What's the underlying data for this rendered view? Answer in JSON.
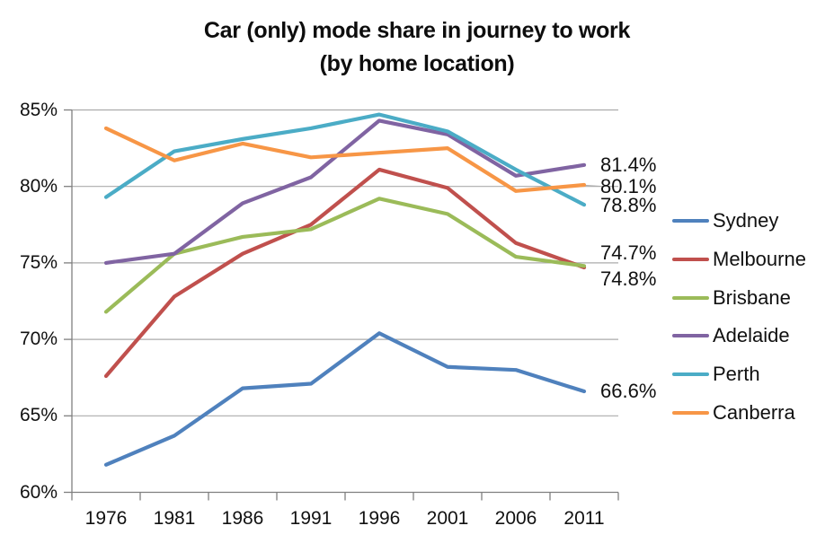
{
  "chart_data": {
    "type": "line",
    "title_line1": "Car (only) mode share in journey to work",
    "title_line2": "(by home location)",
    "xlabel": "",
    "ylabel": "",
    "ylim": [
      60,
      85
    ],
    "y_tick_step": 5,
    "y_tick_labels": [
      "85%",
      "80%",
      "75%",
      "70%",
      "65%",
      "60%"
    ],
    "y_tick_values": [
      85,
      80,
      75,
      70,
      65,
      60
    ],
    "categories": [
      "1976",
      "1981",
      "1986",
      "1991",
      "1996",
      "2001",
      "2006",
      "2011"
    ],
    "grid": "horizontal",
    "legend_position": "right",
    "series": [
      {
        "name": "Sydney",
        "color": "#4F81BD",
        "values": [
          61.8,
          63.7,
          66.8,
          67.1,
          70.4,
          68.2,
          68.0,
          66.6
        ]
      },
      {
        "name": "Melbourne",
        "color": "#C0504D",
        "values": [
          67.6,
          72.8,
          75.6,
          77.5,
          81.1,
          79.9,
          76.3,
          74.7
        ]
      },
      {
        "name": "Brisbane",
        "color": "#9BBB59",
        "values": [
          71.8,
          75.6,
          76.7,
          77.2,
          79.2,
          78.2,
          75.4,
          74.8
        ]
      },
      {
        "name": "Adelaide",
        "color": "#8064A2",
        "values": [
          75.0,
          75.6,
          78.9,
          80.6,
          84.3,
          83.4,
          80.7,
          81.4
        ]
      },
      {
        "name": "Perth",
        "color": "#4BACC6",
        "values": [
          79.3,
          82.3,
          83.1,
          83.8,
          84.7,
          83.6,
          81.1,
          78.8
        ]
      },
      {
        "name": "Canberra",
        "color": "#F79646",
        "values": [
          83.8,
          81.7,
          82.8,
          81.9,
          82.2,
          82.5,
          79.7,
          80.1
        ]
      }
    ],
    "end_labels": [
      {
        "series": "Adelaide",
        "text": "81.4%",
        "value": 81.4,
        "dy": 0
      },
      {
        "series": "Canberra",
        "text": "80.1%",
        "value": 80.1,
        "dy": 2
      },
      {
        "series": "Perth",
        "text": "78.8%",
        "value": 78.8,
        "dy": 1
      },
      {
        "series": "Melbourne",
        "text": "74.7%",
        "value": 74.7,
        "dy": -16
      },
      {
        "series": "Brisbane",
        "text": "74.8%",
        "value": 74.8,
        "dy": 15
      },
      {
        "series": "Sydney",
        "text": "66.6%",
        "value": 66.6,
        "dy": 0
      }
    ]
  },
  "colors": {
    "background": "#FFFFFF",
    "gridline": "#ABABAB",
    "axis": "#7F7F7F",
    "text": "#000000"
  }
}
